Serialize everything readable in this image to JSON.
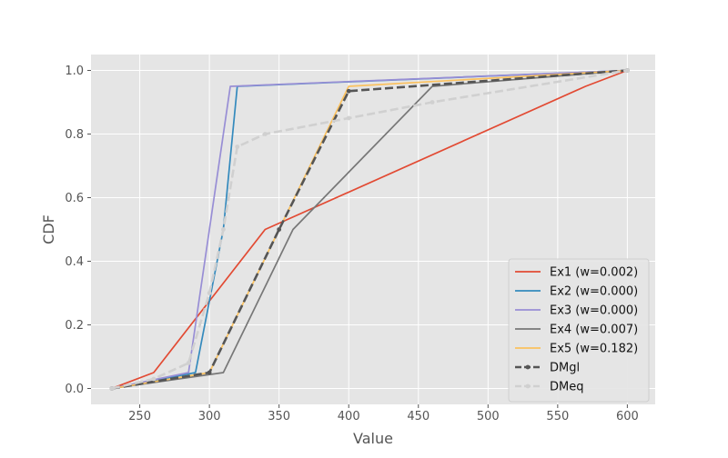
{
  "chart_data": {
    "type": "line",
    "title": "",
    "xlabel": "Value",
    "ylabel": "CDF",
    "xlim": [
      215,
      620
    ],
    "ylim": [
      -0.05,
      1.05
    ],
    "xticks": [
      250,
      300,
      350,
      400,
      450,
      500,
      550,
      600
    ],
    "yticks": [
      0.0,
      0.2,
      0.4,
      0.6,
      0.8,
      1.0
    ],
    "grid": true,
    "legend_position": "lower-right",
    "series": [
      {
        "name": "Ex1 (w=0.002)",
        "color": "#E24A33",
        "dash": "solid",
        "x": [
          230,
          260,
          340,
          570,
          600
        ],
        "y": [
          0.0,
          0.05,
          0.5,
          0.95,
          1.0
        ]
      },
      {
        "name": "Ex2 (w=0.000)",
        "color": "#348ABD",
        "dash": "solid",
        "x": [
          230,
          290,
          310,
          320,
          600
        ],
        "y": [
          0.0,
          0.05,
          0.5,
          0.95,
          1.0
        ]
      },
      {
        "name": "Ex3 (w=0.000)",
        "color": "#988ED5",
        "dash": "solid",
        "x": [
          230,
          285,
          300,
          315,
          600
        ],
        "y": [
          0.0,
          0.05,
          0.5,
          0.95,
          1.0
        ]
      },
      {
        "name": "Ex4 (w=0.007)",
        "color": "#777777",
        "dash": "solid",
        "x": [
          230,
          310,
          360,
          460,
          600
        ],
        "y": [
          0.0,
          0.05,
          0.5,
          0.95,
          1.0
        ]
      },
      {
        "name": "Ex5 (w=0.182)",
        "color": "#FBC15E",
        "dash": "solid",
        "x": [
          230,
          300,
          350,
          400,
          600
        ],
        "y": [
          0.0,
          0.05,
          0.5,
          0.95,
          1.0
        ]
      },
      {
        "name": "DMgl",
        "color": "#555555",
        "dash": "dashed",
        "markers": true,
        "x": [
          230,
          300,
          350,
          400,
          600
        ],
        "y": [
          0.0,
          0.05,
          0.5,
          0.935,
          1.0
        ]
      },
      {
        "name": "DMeq",
        "color": "#D0D0D0",
        "dash": "dashed",
        "markers": true,
        "x": [
          230,
          260,
          285,
          300,
          310,
          320,
          340,
          400,
          460,
          600
        ],
        "y": [
          0.0,
          0.03,
          0.08,
          0.3,
          0.5,
          0.76,
          0.8,
          0.85,
          0.9,
          1.0
        ]
      }
    ]
  }
}
